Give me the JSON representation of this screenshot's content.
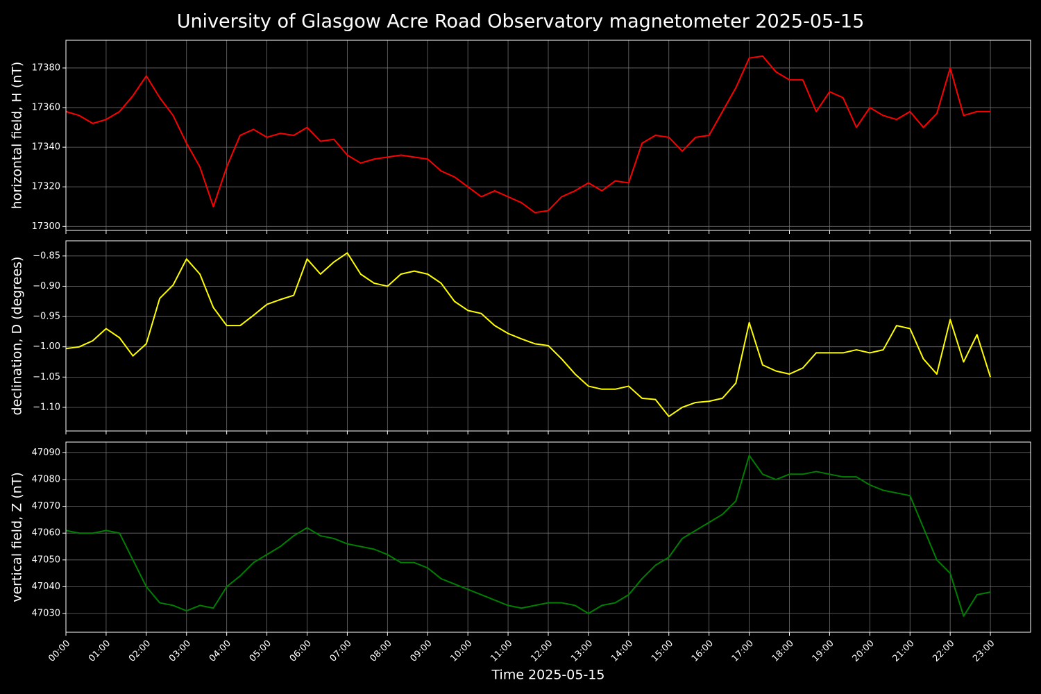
{
  "title": "University of Glasgow Acre Road Observatory magnetometer 2025-05-15",
  "chart_data": [
    {
      "type": "line",
      "y_label": "horizontal field, H (nT)",
      "color": "#ff0000",
      "grid": true,
      "x": [
        "00:00",
        "00:20",
        "00:40",
        "01:00",
        "01:20",
        "01:40",
        "02:00",
        "02:20",
        "02:40",
        "03:00",
        "03:20",
        "03:40",
        "04:00",
        "04:20",
        "04:40",
        "05:00",
        "05:20",
        "05:40",
        "06:00",
        "06:20",
        "06:40",
        "07:00",
        "07:20",
        "07:40",
        "08:00",
        "08:20",
        "08:40",
        "09:00",
        "09:20",
        "09:40",
        "10:00",
        "10:20",
        "10:40",
        "11:00",
        "11:20",
        "11:40",
        "12:00",
        "12:20",
        "12:40",
        "13:00",
        "13:20",
        "13:40",
        "14:00",
        "14:20",
        "14:40",
        "15:00",
        "15:20",
        "15:40",
        "16:00",
        "16:20",
        "16:40",
        "17:00",
        "17:20",
        "17:40",
        "18:00",
        "18:20",
        "18:40",
        "19:00",
        "19:20",
        "19:40",
        "20:00",
        "20:20",
        "20:40",
        "21:00",
        "21:20",
        "21:40",
        "22:00",
        "22:20",
        "22:40",
        "23:00"
      ],
      "values": [
        17358,
        17356,
        17352,
        17354,
        17358,
        17366,
        17376,
        17365,
        17356,
        17342,
        17330,
        17310,
        17330,
        17346,
        17349,
        17345,
        17347,
        17346,
        17350,
        17343,
        17344,
        17336,
        17332,
        17334,
        17335,
        17336,
        17335,
        17334,
        17328,
        17325,
        17320,
        17315,
        17318,
        17315,
        17312,
        17307,
        17308,
        17315,
        17318,
        17322,
        17318,
        17323,
        17322,
        17342,
        17346,
        17345,
        17338,
        17345,
        17346,
        17358,
        17370,
        17385,
        17386,
        17378,
        17374,
        17374,
        17358,
        17368,
        17365,
        17350,
        17360,
        17356,
        17354,
        17358,
        17350,
        17357,
        17380,
        17356,
        17358,
        17358
      ],
      "xlim": [
        "00:00",
        "24:00"
      ],
      "xticks": [
        "00:00",
        "01:00",
        "02:00",
        "03:00",
        "04:00",
        "05:00",
        "06:00",
        "07:00",
        "08:00",
        "09:00",
        "10:00",
        "11:00",
        "12:00",
        "13:00",
        "14:00",
        "15:00",
        "16:00",
        "17:00",
        "18:00",
        "19:00",
        "20:00",
        "21:00",
        "22:00",
        "23:00"
      ],
      "ylim": [
        17298,
        17394
      ],
      "yticks": [
        17300,
        17320,
        17340,
        17360,
        17380
      ]
    },
    {
      "type": "line",
      "y_label": "declination, D (degrees)",
      "color": "#ffff00",
      "grid": true,
      "x": [
        "00:00",
        "00:20",
        "00:40",
        "01:00",
        "01:20",
        "01:40",
        "02:00",
        "02:20",
        "02:40",
        "03:00",
        "03:20",
        "03:40",
        "04:00",
        "04:20",
        "04:40",
        "05:00",
        "05:20",
        "05:40",
        "06:00",
        "06:20",
        "06:40",
        "07:00",
        "07:20",
        "07:40",
        "08:00",
        "08:20",
        "08:40",
        "09:00",
        "09:20",
        "09:40",
        "10:00",
        "10:20",
        "10:40",
        "11:00",
        "11:20",
        "11:40",
        "12:00",
        "12:20",
        "12:40",
        "13:00",
        "13:20",
        "13:40",
        "14:00",
        "14:20",
        "14:40",
        "15:00",
        "15:20",
        "15:40",
        "16:00",
        "16:20",
        "16:40",
        "17:00",
        "17:20",
        "17:40",
        "18:00",
        "18:20",
        "18:40",
        "19:00",
        "19:20",
        "19:40",
        "20:00",
        "20:20",
        "20:40",
        "21:00",
        "21:20",
        "21:40",
        "22:00",
        "22:20",
        "22:40",
        "23:00"
      ],
      "values": [
        -1.003,
        -1.0,
        -0.99,
        -0.97,
        -0.985,
        -1.015,
        -0.995,
        -0.92,
        -0.898,
        -0.855,
        -0.88,
        -0.935,
        -0.965,
        -0.965,
        -0.948,
        -0.93,
        -0.922,
        -0.915,
        -0.855,
        -0.88,
        -0.86,
        -0.845,
        -0.88,
        -0.895,
        -0.9,
        -0.88,
        -0.875,
        -0.88,
        -0.895,
        -0.925,
        -0.94,
        -0.945,
        -0.965,
        -0.978,
        -0.987,
        -0.995,
        -0.998,
        -1.02,
        -1.045,
        -1.065,
        -1.07,
        -1.07,
        -1.065,
        -1.085,
        -1.087,
        -1.115,
        -1.1,
        -1.092,
        -1.09,
        -1.085,
        -1.06,
        -0.96,
        -1.03,
        -1.04,
        -1.045,
        -1.035,
        -1.01,
        -1.01,
        -1.01,
        -1.005,
        -1.01,
        -1.005,
        -0.965,
        -0.97,
        -1.02,
        -1.045,
        -0.955,
        -1.025,
        -0.98,
        -1.05
      ],
      "xlim": [
        "00:00",
        "24:00"
      ],
      "xticks": [
        "00:00",
        "01:00",
        "02:00",
        "03:00",
        "04:00",
        "05:00",
        "06:00",
        "07:00",
        "08:00",
        "09:00",
        "10:00",
        "11:00",
        "12:00",
        "13:00",
        "14:00",
        "15:00",
        "16:00",
        "17:00",
        "18:00",
        "19:00",
        "20:00",
        "21:00",
        "22:00",
        "23:00"
      ],
      "ylim": [
        -1.139,
        -0.825
      ],
      "yticks": [
        {
          "value": -1.1,
          "label": "−1.10"
        },
        {
          "value": -1.05,
          "label": "−1.05"
        },
        {
          "value": -1.0,
          "label": "−1.00"
        },
        {
          "value": -0.95,
          "label": "−0.95"
        },
        {
          "value": -0.9,
          "label": "−0.90"
        },
        {
          "value": -0.85,
          "label": "−0.85"
        }
      ]
    },
    {
      "type": "line",
      "y_label": "vertical field, Z (nT)",
      "x_label": "Time 2025-05-15",
      "color": "#008000",
      "grid": true,
      "x": [
        "00:00",
        "00:20",
        "00:40",
        "01:00",
        "01:20",
        "01:40",
        "02:00",
        "02:20",
        "02:40",
        "03:00",
        "03:20",
        "03:40",
        "04:00",
        "04:20",
        "04:40",
        "05:00",
        "05:20",
        "05:40",
        "06:00",
        "06:20",
        "06:40",
        "07:00",
        "07:20",
        "07:40",
        "08:00",
        "08:20",
        "08:40",
        "09:00",
        "09:20",
        "09:40",
        "10:00",
        "10:20",
        "10:40",
        "11:00",
        "11:20",
        "11:40",
        "12:00",
        "12:20",
        "12:40",
        "13:00",
        "13:20",
        "13:40",
        "14:00",
        "14:20",
        "14:40",
        "15:00",
        "15:20",
        "15:40",
        "16:00",
        "16:20",
        "16:40",
        "17:00",
        "17:20",
        "17:40",
        "18:00",
        "18:20",
        "18:40",
        "19:00",
        "19:20",
        "19:40",
        "20:00",
        "20:20",
        "20:40",
        "21:00",
        "21:20",
        "21:40",
        "22:00",
        "22:20",
        "22:40",
        "23:00"
      ],
      "values": [
        47061,
        47060,
        47060,
        47061,
        47060,
        47050,
        47040,
        47034,
        47033,
        47031,
        47033,
        47032,
        47040,
        47044,
        47049,
        47052,
        47055,
        47059,
        47062,
        47059,
        47058,
        47056,
        47055,
        47054,
        47052,
        47049,
        47049,
        47047,
        47043,
        47041,
        47039,
        47037,
        47035,
        47033,
        47032,
        47033,
        47034,
        47034,
        47033,
        47030,
        47033,
        47034,
        47037,
        47043,
        47048,
        47051,
        47058,
        47061,
        47064,
        47067,
        47072,
        47089,
        47082,
        47080,
        47082,
        47082,
        47083,
        47082,
        47081,
        47081,
        47078,
        47076,
        47075,
        47074,
        47062,
        47050,
        47045,
        47029,
        47037,
        47038
      ],
      "xlim": [
        "00:00",
        "24:00"
      ],
      "xticks": [
        "00:00",
        "01:00",
        "02:00",
        "03:00",
        "04:00",
        "05:00",
        "06:00",
        "07:00",
        "08:00",
        "09:00",
        "10:00",
        "11:00",
        "12:00",
        "13:00",
        "14:00",
        "15:00",
        "16:00",
        "17:00",
        "18:00",
        "19:00",
        "20:00",
        "21:00",
        "22:00",
        "23:00"
      ],
      "ylim": [
        47023,
        47094
      ],
      "yticks": [
        47030,
        47040,
        47050,
        47060,
        47070,
        47080,
        47090
      ]
    }
  ]
}
